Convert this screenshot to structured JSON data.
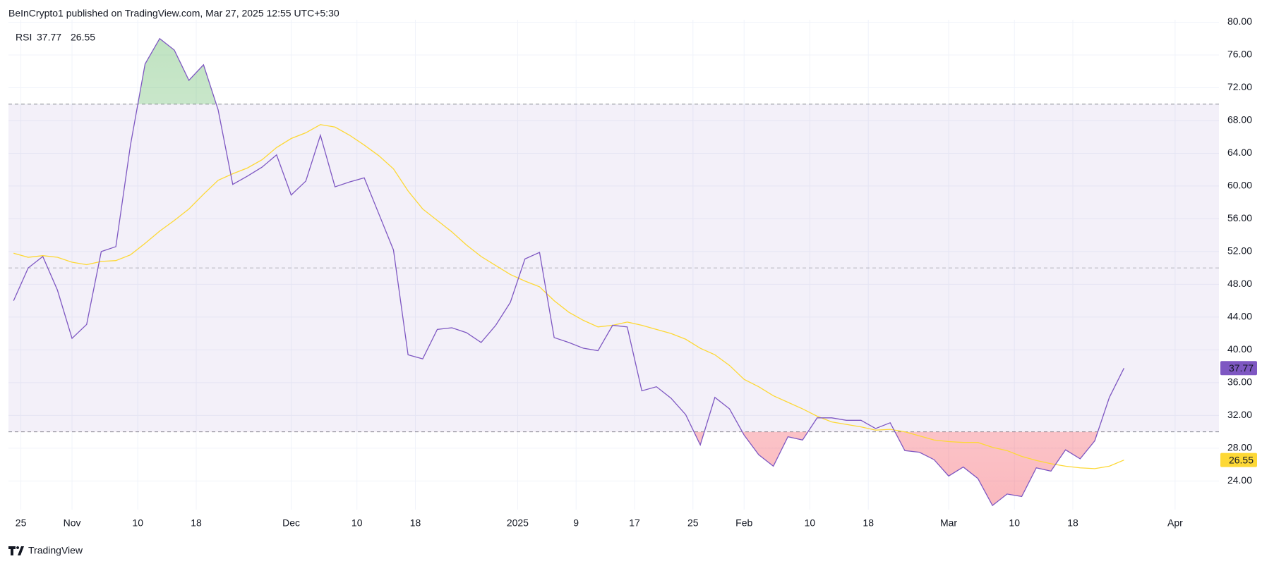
{
  "attribution": "BeInCrypto1 published on TradingView.com, Mar 27, 2025 12:55 UTC+5:30",
  "brand": "TradingView",
  "chart_data": {
    "type": "line",
    "title": "RSI",
    "x": [
      -1,
      1,
      3,
      5,
      7,
      9,
      11,
      13,
      15,
      17,
      19,
      21,
      23,
      25,
      27,
      29,
      31,
      33,
      35,
      37,
      39,
      41,
      43,
      45,
      47,
      49,
      51,
      53,
      55,
      57,
      59,
      61,
      63,
      65,
      67,
      69,
      71,
      73,
      75,
      77,
      79,
      81,
      83,
      85,
      87,
      89,
      91,
      93,
      95,
      97,
      99,
      101,
      103,
      105,
      107,
      109,
      111,
      113,
      115,
      117,
      119,
      121,
      123,
      125,
      127,
      129,
      131,
      133,
      135,
      137,
      139,
      141,
      143,
      145,
      147,
      149,
      151
    ],
    "series": [
      {
        "color": "#7e57c2",
        "values": [
          46,
          50,
          51.4,
          47.3,
          41.4,
          43.1,
          52,
          52.6,
          65,
          74.9,
          78,
          76.6,
          72.9,
          74.8,
          69.3,
          60.2,
          61.2,
          62.3,
          63.8,
          58.9,
          60.6,
          66.2,
          59.9,
          60.5,
          61,
          56.6,
          52.2,
          39.4,
          38.9,
          42.5,
          42.7,
          42.1,
          40.9,
          43,
          45.8,
          51.1,
          51.9,
          41.5,
          40.9,
          40.2,
          39.9,
          43,
          42.8,
          35,
          35.5,
          34.1,
          32.1,
          28.4,
          34.2,
          32.8,
          29.6,
          27.2,
          25.8,
          29.4,
          29,
          31.7,
          31.7,
          31.4,
          31.4,
          30.4,
          31.1,
          27.7,
          27.5,
          26.6,
          24.6,
          25.7,
          24.3,
          21,
          22.4,
          22.1,
          25.6,
          25.2,
          27.8,
          26.7,
          28.9,
          34.2,
          37.77
        ]
      },
      {
        "color": "#fdd835",
        "values": [
          51.8,
          51.3,
          51.5,
          51.3,
          50.7,
          50.4,
          50.8,
          50.9,
          51.6,
          53,
          54.5,
          55.8,
          57.2,
          59,
          60.7,
          61.5,
          62.2,
          63.2,
          64.7,
          65.8,
          66.5,
          67.5,
          67.2,
          66.2,
          65,
          63.7,
          62.1,
          59.4,
          57.2,
          55.8,
          54.4,
          52.8,
          51.4,
          50.3,
          49.2,
          48.4,
          47.7,
          46,
          44.6,
          43.6,
          42.8,
          43,
          43.4,
          43,
          42.5,
          42,
          41.3,
          40.2,
          39.4,
          38.1,
          36.4,
          35.5,
          34.4,
          33.6,
          32.8,
          31.9,
          31.2,
          30.9,
          30.6,
          30.2,
          30.3,
          30,
          29.5,
          29,
          28.8,
          28.7,
          28.7,
          28.1,
          27.7,
          27,
          26.5,
          26.1,
          25.8,
          25.6,
          25.5,
          25.8,
          26.55
        ]
      }
    ],
    "levels": {
      "upper": 70,
      "middle": 50,
      "lower": 30
    },
    "band_color": "#7e57c2",
    "xlim": [
      -1.7,
      164
    ],
    "xticks": [
      {
        "value": 0,
        "label": "25"
      },
      {
        "value": 7,
        "label": "Nov"
      },
      {
        "value": 16,
        "label": "10"
      },
      {
        "value": 24,
        "label": "18"
      },
      {
        "value": 37,
        "label": "Dec"
      },
      {
        "value": 46,
        "label": "10"
      },
      {
        "value": 54,
        "label": "18"
      },
      {
        "value": 68,
        "label": "2025"
      },
      {
        "value": 76,
        "label": "9"
      },
      {
        "value": 84,
        "label": "17"
      },
      {
        "value": 92,
        "label": "25"
      },
      {
        "value": 99,
        "label": "Feb"
      },
      {
        "value": 108,
        "label": "10"
      },
      {
        "value": 116,
        "label": "18"
      },
      {
        "value": 127,
        "label": "Mar"
      },
      {
        "value": 136,
        "label": "10"
      },
      {
        "value": 144,
        "label": "18"
      },
      {
        "value": 158,
        "label": "Apr"
      }
    ],
    "ylim": [
      20.5,
      80.3
    ],
    "yticks": [
      {
        "value": 80,
        "label": "80.00"
      },
      {
        "value": 76,
        "label": "76.00"
      },
      {
        "value": 72,
        "label": "72.00"
      },
      {
        "value": 68,
        "label": "68.00"
      },
      {
        "value": 64,
        "label": "64.00"
      },
      {
        "value": 60,
        "label": "60.00"
      },
      {
        "value": 56,
        "label": "56.00"
      },
      {
        "value": 52,
        "label": "52.00"
      },
      {
        "value": 48,
        "label": "48.00"
      },
      {
        "value": 44,
        "label": "44.00"
      },
      {
        "value": 40,
        "label": "40.00"
      },
      {
        "value": 36,
        "label": "36.00"
      },
      {
        "value": 32,
        "label": "32.00"
      },
      {
        "value": 28,
        "label": "28.00"
      },
      {
        "value": 24,
        "label": "24.00"
      }
    ],
    "grid": true
  }
}
